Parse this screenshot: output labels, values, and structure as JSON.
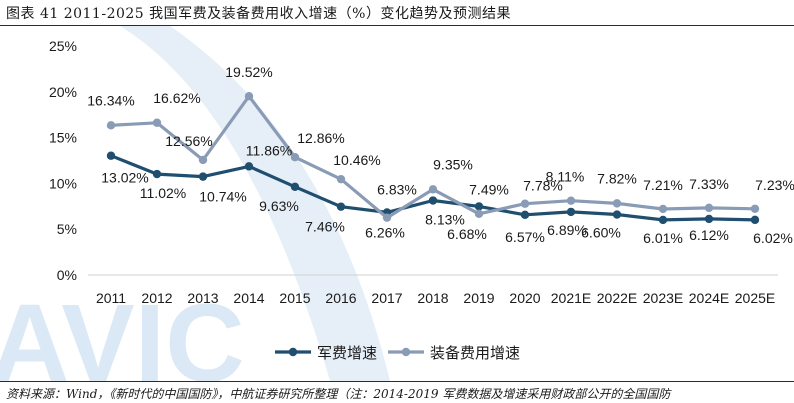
{
  "header": {
    "title": "图表 41 2011-2025 我国军费及装备费用收入增速（%）变化趋势及预测结果"
  },
  "footer": {
    "source": "资料来源：Wind，《新时代的中国国防》，中航证券研究所整理（注：2014-2019 军费数据及增速采用财政部公开的全国国防"
  },
  "watermark": {
    "text": "AVIC",
    "color": "#dbe9f6"
  },
  "chart_data": {
    "type": "line",
    "title": "",
    "xlabel": "",
    "ylabel": "",
    "categories": [
      "2011",
      "2012",
      "2013",
      "2014",
      "2015",
      "2016",
      "2017",
      "2018",
      "2019",
      "2020",
      "2021E",
      "2022E",
      "2023E",
      "2024E",
      "2025E"
    ],
    "ylim": [
      0,
      25
    ],
    "yticks": [
      0,
      5,
      10,
      15,
      20,
      25
    ],
    "ytick_labels": [
      "0%",
      "5%",
      "10%",
      "15%",
      "20%",
      "25%"
    ],
    "grid": false,
    "legend_position": "bottom",
    "series": [
      {
        "name": "军费增速",
        "color": "#1f4e6e",
        "values": [
          13.02,
          11.02,
          10.74,
          11.86,
          9.63,
          7.46,
          6.83,
          8.13,
          7.49,
          6.57,
          6.89,
          6.6,
          6.01,
          6.12,
          6.02
        ],
        "labels": [
          "13.02%",
          "11.02%",
          "10.74%",
          "11.86%",
          "9.63%",
          "7.46%",
          "6.83%",
          "8.13%",
          "7.49%",
          "6.57%",
          "6.89%",
          "6.60%",
          "6.01%",
          "6.12%",
          "6.02%"
        ]
      },
      {
        "name": "装备费用增速",
        "color": "#8a9bb5",
        "values": [
          16.34,
          16.62,
          12.56,
          19.52,
          12.86,
          10.46,
          6.26,
          9.35,
          6.68,
          7.78,
          8.11,
          7.82,
          7.21,
          7.33,
          7.23
        ],
        "labels": [
          "16.34%",
          "16.62%",
          "12.56%",
          "19.52%",
          "12.86%",
          "10.46%",
          "6.26%",
          "9.35%",
          "6.68%",
          "7.78%",
          "8.11%",
          "7.82%",
          "7.21%",
          "7.33%",
          "7.23%"
        ]
      }
    ]
  }
}
